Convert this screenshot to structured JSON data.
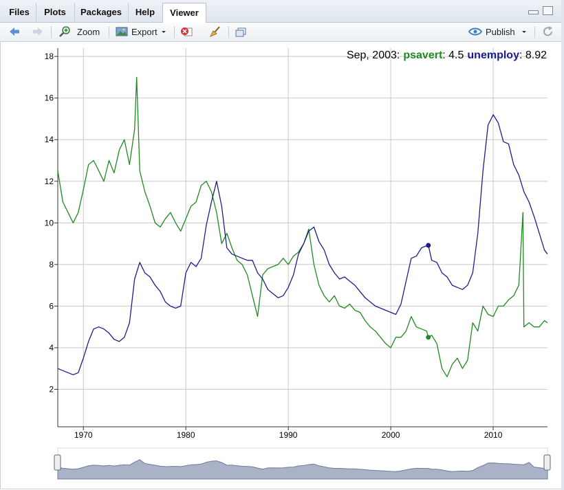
{
  "tabs": [
    {
      "label": "Files"
    },
    {
      "label": "Plots"
    },
    {
      "label": "Packages"
    },
    {
      "label": "Help"
    },
    {
      "label": "Viewer"
    }
  ],
  "toolbar": {
    "zoom_label": "Zoom",
    "export_label": "Export",
    "publish_label": "Publish"
  },
  "legend_readout": {
    "date": "Sep, 2003:",
    "s1_name": "psavert",
    "s1_value": "4.5",
    "s2_name": "unemploy",
    "s2_value": "8.92"
  },
  "colors": {
    "psavert": "#1f8a1f",
    "unemploy": "#1c1c8c",
    "grid": "#c8c8c8",
    "axis": "#333333",
    "range_fill": "#aab2c8"
  },
  "chart_data": {
    "type": "line",
    "title": "",
    "xlabel": "",
    "ylabel": "",
    "xlim": [
      1967.5,
      2015.3
    ],
    "ylim": [
      0.2,
      18.4
    ],
    "xticks": [
      "1970",
      "1980",
      "1990",
      "2000",
      "2010"
    ],
    "yticks": [
      "2",
      "4",
      "6",
      "8",
      "10",
      "12",
      "14",
      "16",
      "18"
    ],
    "grid": true,
    "legend": "top-right",
    "series": [
      {
        "name": "psavert",
        "x": [
          1967.5,
          1968.0,
          1968.5,
          1969.0,
          1969.5,
          1970.0,
          1970.5,
          1971.0,
          1971.5,
          1972.0,
          1972.5,
          1973.0,
          1973.5,
          1974.0,
          1974.5,
          1975.0,
          1975.2,
          1975.5,
          1976.0,
          1976.5,
          1977.0,
          1977.5,
          1978.0,
          1978.5,
          1979.0,
          1979.5,
          1980.0,
          1980.5,
          1981.0,
          1981.5,
          1982.0,
          1982.5,
          1983.0,
          1983.5,
          1984.0,
          1984.5,
          1985.0,
          1985.5,
          1986.0,
          1986.5,
          1987.0,
          1987.5,
          1988.0,
          1988.5,
          1989.0,
          1989.5,
          1990.0,
          1990.5,
          1991.0,
          1991.5,
          1992.0,
          1992.5,
          1993.0,
          1993.5,
          1994.0,
          1994.5,
          1995.0,
          1995.5,
          1996.0,
          1996.5,
          1997.0,
          1997.5,
          1998.0,
          1998.5,
          1999.0,
          1999.5,
          2000.0,
          2000.5,
          2001.0,
          2001.5,
          2002.0,
          2002.5,
          2003.0,
          2003.5,
          2003.67,
          2004.0,
          2004.5,
          2005.0,
          2005.5,
          2006.0,
          2006.5,
          2007.0,
          2007.5,
          2008.0,
          2008.5,
          2009.0,
          2009.5,
          2010.0,
          2010.5,
          2011.0,
          2011.5,
          2012.0,
          2012.5,
          2012.9,
          2013.0,
          2013.5,
          2014.0,
          2014.5,
          2015.0,
          2015.3
        ],
        "values": [
          12.5,
          11.0,
          10.5,
          10.0,
          10.5,
          11.6,
          12.8,
          13.0,
          12.5,
          12.0,
          13.0,
          12.4,
          13.5,
          14.0,
          12.8,
          14.5,
          17.0,
          12.5,
          11.5,
          10.8,
          10.0,
          9.8,
          10.2,
          10.5,
          10.0,
          9.6,
          10.2,
          10.8,
          11.0,
          11.8,
          12.0,
          11.5,
          10.5,
          9.0,
          9.5,
          8.8,
          8.2,
          8.0,
          7.5,
          6.5,
          5.5,
          7.5,
          7.8,
          7.9,
          8.0,
          8.3,
          8.0,
          8.4,
          8.6,
          9.0,
          9.7,
          8.0,
          7.0,
          6.5,
          6.2,
          6.5,
          6.0,
          5.9,
          6.1,
          5.8,
          5.7,
          5.3,
          5.0,
          4.8,
          4.5,
          4.2,
          4.0,
          4.5,
          4.5,
          4.8,
          5.5,
          5.0,
          4.9,
          4.8,
          4.5,
          4.6,
          4.2,
          3.0,
          2.6,
          3.2,
          3.5,
          3.0,
          3.4,
          5.2,
          4.8,
          6.0,
          5.6,
          5.5,
          6.0,
          6.0,
          6.3,
          6.5,
          7.0,
          10.5,
          5.0,
          5.2,
          5.0,
          5.0,
          5.3,
          5.2
        ]
      },
      {
        "name": "unemploy",
        "x": [
          1967.5,
          1968.0,
          1968.5,
          1969.0,
          1969.5,
          1970.0,
          1970.5,
          1971.0,
          1971.5,
          1972.0,
          1972.5,
          1973.0,
          1973.5,
          1974.0,
          1974.5,
          1975.0,
          1975.5,
          1976.0,
          1976.5,
          1977.0,
          1977.5,
          1978.0,
          1978.5,
          1979.0,
          1979.5,
          1980.0,
          1980.5,
          1981.0,
          1981.5,
          1982.0,
          1982.5,
          1983.0,
          1983.5,
          1984.0,
          1984.5,
          1985.0,
          1985.5,
          1986.0,
          1986.5,
          1987.0,
          1987.5,
          1988.0,
          1988.5,
          1989.0,
          1989.5,
          1990.0,
          1990.5,
          1991.0,
          1991.5,
          1992.0,
          1992.5,
          1993.0,
          1993.5,
          1994.0,
          1994.5,
          1995.0,
          1995.5,
          1996.0,
          1996.5,
          1997.0,
          1997.5,
          1998.0,
          1998.5,
          1999.0,
          1999.5,
          2000.0,
          2000.5,
          2001.0,
          2001.5,
          2002.0,
          2002.5,
          2003.0,
          2003.5,
          2003.67,
          2004.0,
          2004.5,
          2005.0,
          2005.5,
          2006.0,
          2006.5,
          2007.0,
          2007.5,
          2008.0,
          2008.5,
          2009.0,
          2009.5,
          2010.0,
          2010.5,
          2011.0,
          2011.5,
          2012.0,
          2012.5,
          2013.0,
          2013.5,
          2014.0,
          2014.5,
          2015.0,
          2015.3
        ],
        "values": [
          3.0,
          2.9,
          2.8,
          2.7,
          2.8,
          3.5,
          4.3,
          4.9,
          5.0,
          4.9,
          4.7,
          4.4,
          4.3,
          4.5,
          5.2,
          7.3,
          8.1,
          7.6,
          7.4,
          7.0,
          6.7,
          6.2,
          6.0,
          5.9,
          6.0,
          7.6,
          8.1,
          7.9,
          8.3,
          9.9,
          11.0,
          12.0,
          10.8,
          8.8,
          8.5,
          8.4,
          8.3,
          8.2,
          8.2,
          7.6,
          7.3,
          6.8,
          6.6,
          6.4,
          6.5,
          6.9,
          7.5,
          8.5,
          9.0,
          9.6,
          9.8,
          9.1,
          8.7,
          8.0,
          7.6,
          7.3,
          7.4,
          7.2,
          7.0,
          6.7,
          6.4,
          6.2,
          6.0,
          5.9,
          5.8,
          5.7,
          5.6,
          6.1,
          7.2,
          8.3,
          8.4,
          8.8,
          8.9,
          8.92,
          8.2,
          8.1,
          7.6,
          7.4,
          7.0,
          6.9,
          6.8,
          7.0,
          7.6,
          9.5,
          12.5,
          14.7,
          15.2,
          14.8,
          13.9,
          13.8,
          12.8,
          12.3,
          11.5,
          11.0,
          10.3,
          9.5,
          8.7,
          8.5
        ]
      }
    ],
    "highlight": {
      "x": 2003.67,
      "psavert": 4.5,
      "unemploy": 8.92
    },
    "range_selector": {
      "from": 1967.5,
      "to": 2015.3
    }
  }
}
